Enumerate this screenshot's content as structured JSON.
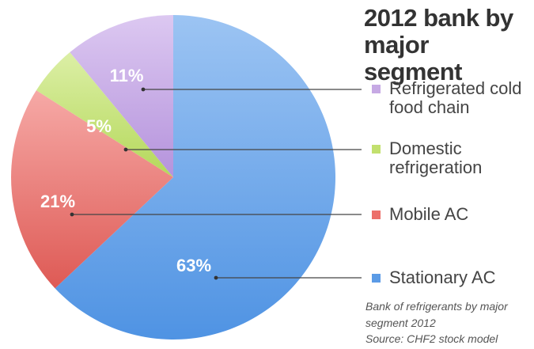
{
  "chart_data": {
    "type": "pie",
    "title": "2012 bank by major segment",
    "categories": [
      "Stationary AC",
      "Mobile AC",
      "Domestic refrigeration",
      "Refrigerated cold food chain"
    ],
    "values": [
      63,
      21,
      5,
      11
    ],
    "data_labels": [
      "63%",
      "21%",
      "5%",
      "11%"
    ],
    "legend": {
      "placement": "right",
      "entries": [
        "Refrigerated cold food chain",
        "Domestic refrigeration",
        "Mobile AC",
        "Stationary AC"
      ]
    },
    "colors": {
      "Stationary AC": "#5b9be6",
      "Mobile AC": "#ec6f6a",
      "Domestic refrigeration": "#c2e06e",
      "Refrigerated cold food chain": "#c6a9e4"
    },
    "caption": "Bank of refrigerants by major segment 2012",
    "source": "Source: CHF2 stock model"
  }
}
